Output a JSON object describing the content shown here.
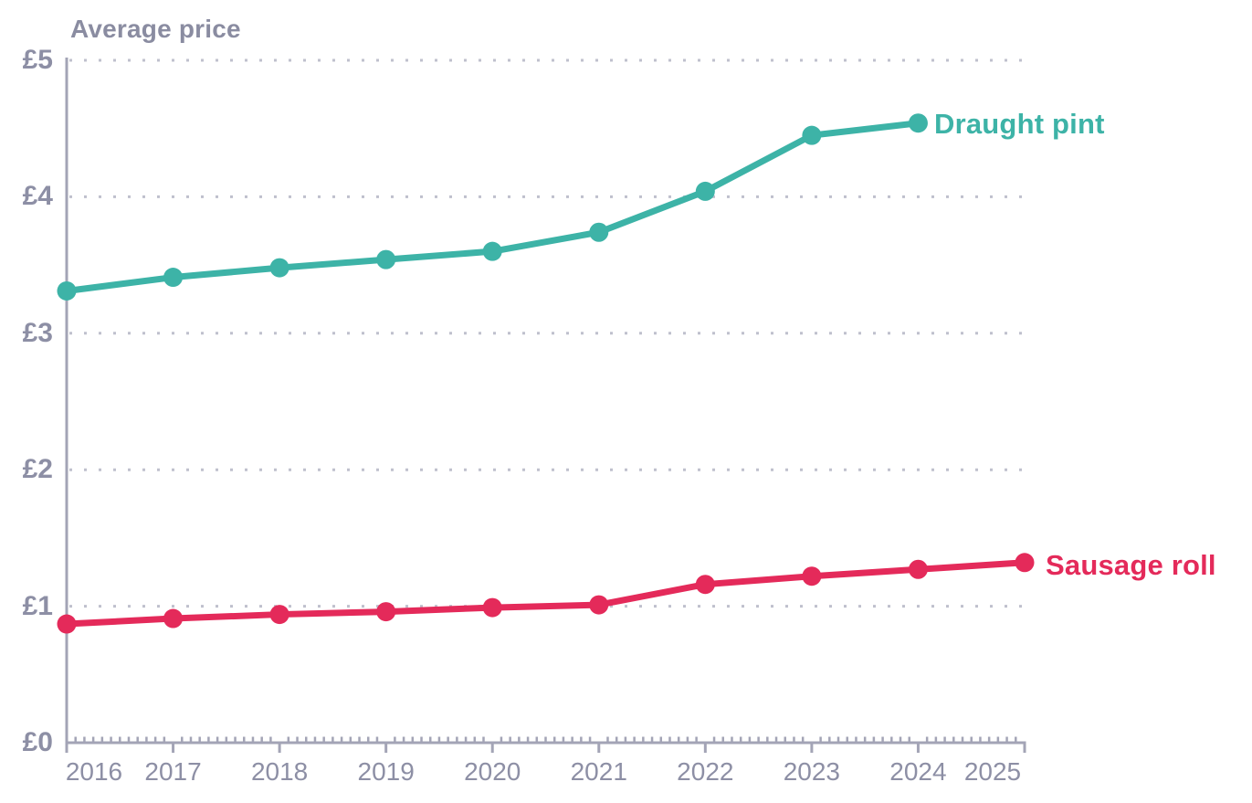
{
  "chart_data": {
    "type": "line",
    "title": "Average price",
    "x": [
      2016,
      2017,
      2018,
      2019,
      2020,
      2021,
      2022,
      2023,
      2024,
      2025
    ],
    "series": [
      {
        "name": "Draught pint",
        "color": "#3db3a7",
        "values": [
          3.31,
          3.41,
          3.48,
          3.54,
          3.6,
          3.74,
          4.04,
          4.45,
          4.54,
          null
        ]
      },
      {
        "name": "Sausage roll",
        "color": "#e42a5a",
        "values": [
          0.87,
          0.91,
          0.94,
          0.96,
          0.99,
          1.01,
          1.16,
          1.22,
          1.27,
          1.32
        ]
      }
    ],
    "xlabel": "",
    "ylabel": "Average price",
    "ylim": [
      0,
      5
    ],
    "ytick_labels": [
      "£0",
      "£1",
      "£2",
      "£3",
      "£4",
      "£5"
    ],
    "currency": "£",
    "grid": "dotted horizontal gridlines",
    "x_minor_ticks": "monthly",
    "legend_position": "labels at line ends"
  },
  "colors": {
    "axis": "#a3a4b6",
    "tick_label": "#8d8fa5",
    "title": "#8a8ca1",
    "gridline": "#bfc0cd",
    "background": "#ffffff"
  }
}
